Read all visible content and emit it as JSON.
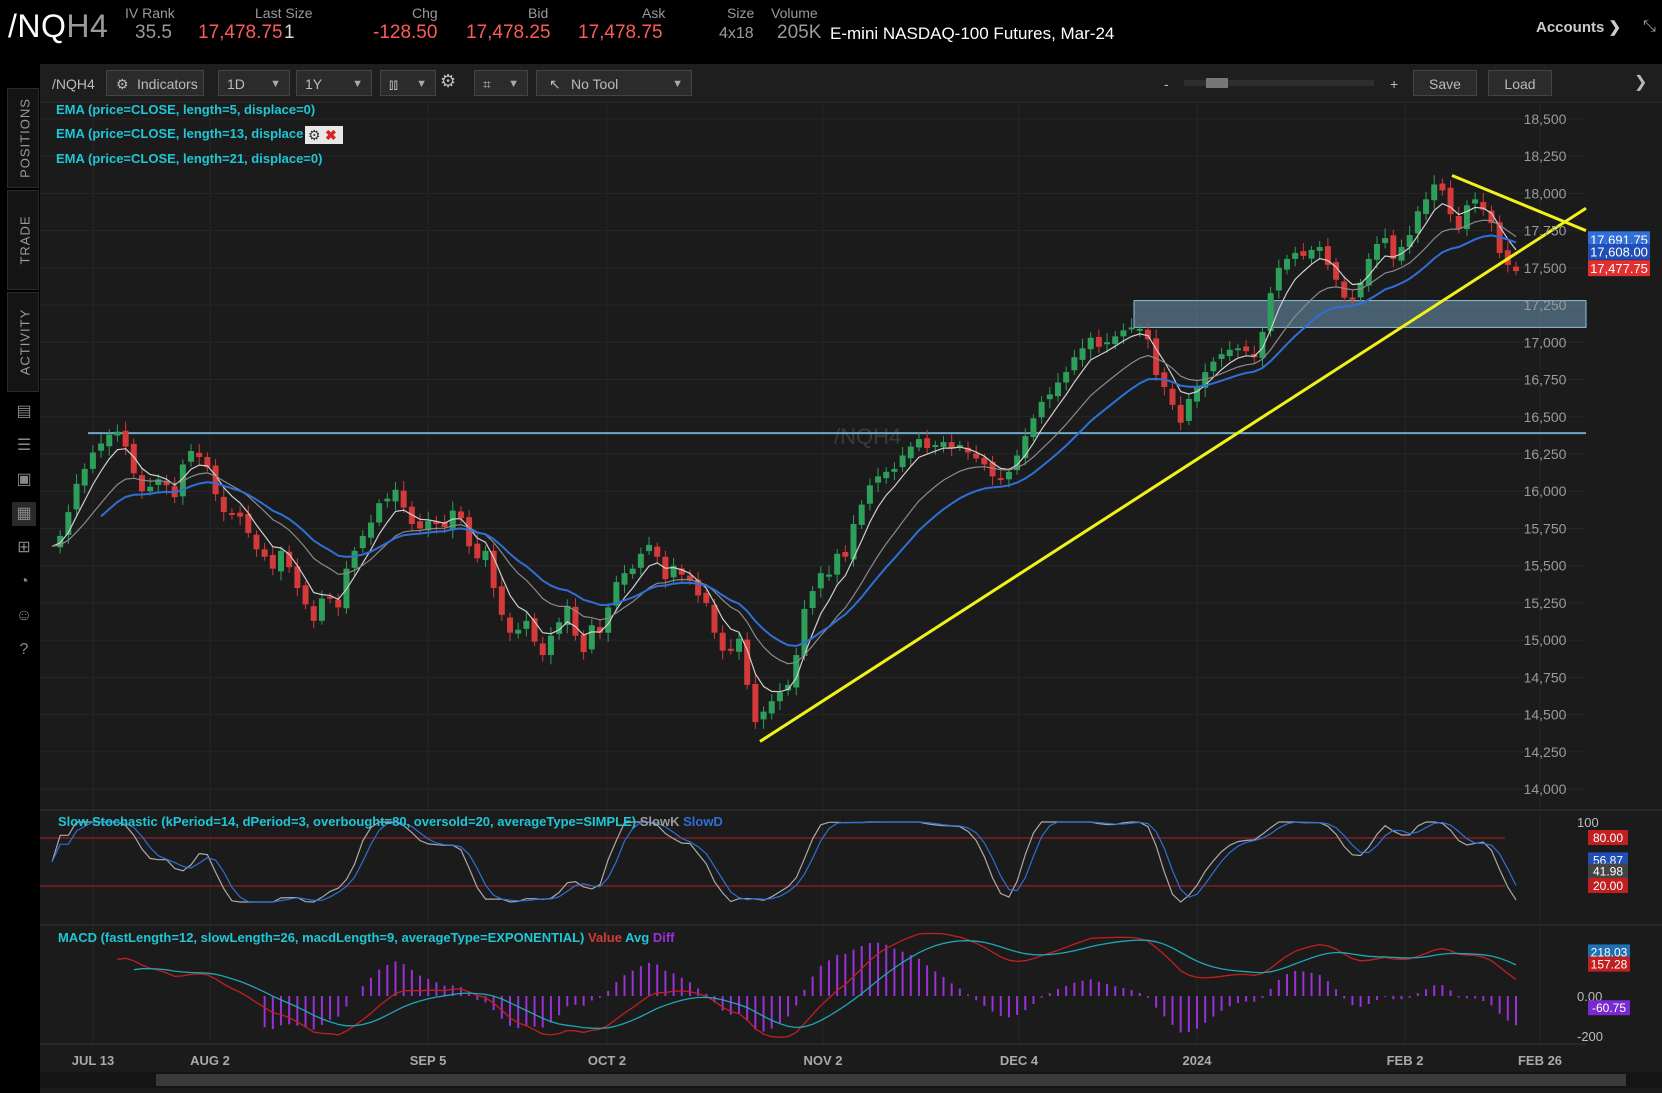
{
  "header": {
    "symbol_main": "/NQ",
    "symbol_dim": "H4",
    "iv_rank_label": "IV Rank",
    "iv_rank_value": "35.5",
    "last_size_label": "Last Size",
    "last_value": "17,478.75",
    "last_size_value": "1",
    "chg_label": "Chg",
    "chg_value": "-128.50",
    "bid_label": "Bid",
    "bid_value": "17,478.25",
    "ask_label": "Ask",
    "ask_value": "17,478.75",
    "size_label": "Size",
    "size_value": "4x18",
    "volume_label": "Volume",
    "volume_value": "205K",
    "description": "E-mini NASDAQ-100 Futures, Mar-24",
    "accounts_label": "Accounts"
  },
  "sidebar": {
    "tabs": [
      "POSITIONS",
      "TRADE",
      "ACTIVITY"
    ]
  },
  "toolbar": {
    "symbol": "/NQH4",
    "indicators_label": "Indicators",
    "aggregation": "1D",
    "timeframe": "1Y",
    "tool": "No Tool",
    "zoom_minus": "-",
    "zoom_plus": "+",
    "save_label": "Save",
    "load_label": "Load"
  },
  "studies": {
    "ema5": "EMA (price=CLOSE, length=5, displace=0)",
    "ema13": "EMA (price=CLOSE, length=13, displace",
    "ema21": "EMA (price=CLOSE, length=21, displace=0)",
    "stoch": "Slow Stochastic (kPeriod=14, dPeriod=3, overbought=80, oversold=20, averageType=SIMPLE)",
    "stoch_k": "SlowK",
    "stoch_d": "SlowD",
    "macd": "MACD (fastLength=12, slowLength=26, macdLength=9, averageType=EXPONENTIAL)",
    "macd_value": "Value",
    "macd_avg": "Avg",
    "macd_diff": "Diff"
  },
  "watermark": "/NQH4",
  "colors": {
    "up": "#2e9e5b",
    "down": "#d43a3a",
    "ema5": "#cfcfcf",
    "ema13": "#8a8a8a",
    "ema21": "#2f6fd6",
    "trend": "#f2f21a",
    "support": "#6fa8c8",
    "zone": "#7fb4d4"
  },
  "chart_data": {
    "type": "candlestick",
    "price_axis_ticks": [
      "18,500",
      "18,250",
      "18,000",
      "17,750",
      "17,500",
      "17,250",
      "17,000",
      "16,750",
      "16,500",
      "16,250",
      "16,000",
      "15,750",
      "15,500",
      "15,250",
      "15,000",
      "14,750",
      "14,500",
      "14,250",
      "14,000"
    ],
    "ylim": [
      13900,
      18600
    ],
    "x_ticks": [
      "JUL 13",
      "AUG 2",
      "SEP 5",
      "OCT 2",
      "NOV 2",
      "DEC 4",
      "2024",
      "FEB 2",
      "FEB 26"
    ],
    "price_labels": [
      "17,691.75",
      "17,608.00",
      "17,477.75"
    ],
    "ohlc_close": [
      15630,
      15700,
      15860,
      16050,
      16150,
      16260,
      16320,
      16380,
      16400,
      16300,
      16120,
      16000,
      16030,
      16080,
      16040,
      15960,
      16180,
      16270,
      16230,
      16160,
      15980,
      15860,
      15850,
      15830,
      15720,
      15610,
      15560,
      15480,
      15600,
      15490,
      15350,
      15240,
      15130,
      15280,
      15290,
      15220,
      15480,
      15600,
      15700,
      15790,
      15920,
      15950,
      16010,
      15890,
      15780,
      15750,
      15800,
      15780,
      15760,
      15870,
      15820,
      15630,
      15550,
      15600,
      15350,
      15170,
      15050,
      15070,
      15130,
      14990,
      14900,
      15030,
      15120,
      15230,
      15030,
      14920,
      15100,
      15050,
      15220,
      15390,
      15450,
      15480,
      15580,
      15640,
      15560,
      15410,
      15500,
      15440,
      15400,
      15300,
      15250,
      15050,
      14930,
      14940,
      15010,
      14700,
      14450,
      14520,
      14590,
      14650,
      14700,
      14900,
      15210,
      15330,
      15450,
      15440,
      15580,
      15560,
      15780,
      15910,
      16040,
      16100,
      16130,
      16150,
      16240,
      16300,
      16350,
      16290,
      16310,
      16330,
      16290,
      16310,
      16260,
      16220,
      16180,
      16100,
      16080,
      16130,
      16240,
      16370,
      16490,
      16600,
      16650,
      16730,
      16800,
      16900,
      16960,
      17030,
      16970,
      17000,
      17040,
      17080,
      17100,
      17090,
      17020,
      16780,
      16700,
      16580,
      16460,
      16620,
      16700,
      16800,
      16870,
      16920,
      16950,
      16960,
      16940,
      16900,
      17070,
      17330,
      17500,
      17560,
      17600,
      17580,
      17620,
      17640,
      17520,
      17420,
      17300,
      17290,
      17400,
      17560,
      17660,
      17700,
      17560,
      17640,
      17720,
      17880,
      17960,
      18060,
      18020,
      17860,
      17760,
      17920,
      17960,
      17890,
      17800,
      17600,
      17520,
      17478
    ],
    "trendlines": [
      {
        "name": "uptrend",
        "from": [
          14320,
          "OCT 26"
        ],
        "to": [
          17900,
          "FEB 26"
        ]
      },
      {
        "name": "downtrend",
        "from": [
          18120,
          "FEB 8"
        ],
        "to": [
          17750,
          "FEB 26"
        ]
      }
    ],
    "support_level": 16390,
    "zone": [
      17100,
      17280
    ],
    "stochastic": {
      "ticks": [
        "100"
      ],
      "levels": [
        "80.00",
        "20.00"
      ],
      "values": [
        "56.87",
        "41.98"
      ]
    },
    "macd": {
      "ticks": [
        "0.00",
        "-200"
      ],
      "values": [
        "218.03",
        "157.28",
        "-60.75"
      ]
    }
  }
}
